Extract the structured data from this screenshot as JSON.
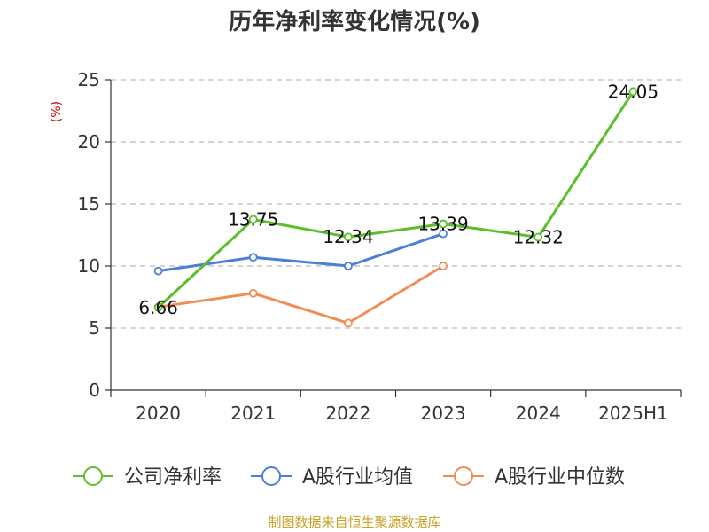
{
  "colors": {
    "company": "#5cbf2a",
    "industry_avg": "#4a7fd6",
    "industry_median": "#f28c55",
    "grid": "#bbbbbb",
    "axis": "#333333",
    "unit_label": "#cc0000",
    "source": "#c9a227"
  },
  "chart_data": {
    "type": "line",
    "title": "历年净利率变化情况(%)",
    "ylabel": "(%)",
    "xlabel": "",
    "categories": [
      "2020",
      "2021",
      "2022",
      "2023",
      "2024",
      "2025H1"
    ],
    "ylim": [
      0,
      25
    ],
    "yticks": [
      "0",
      "5",
      "10",
      "15",
      "20",
      "25"
    ],
    "grid": true,
    "legend_position": "bottom",
    "series": [
      {
        "name": "公司净利率",
        "color": "#5cbf2a",
        "values": [
          6.66,
          13.75,
          12.34,
          13.39,
          12.32,
          24.05
        ],
        "labels": [
          "6.66",
          "13.75",
          "12.34",
          "13.39",
          "12.32",
          "24.05"
        ]
      },
      {
        "name": "A股行业均值",
        "color": "#4a7fd6",
        "values": [
          9.6,
          10.7,
          10.0,
          12.6,
          null,
          null
        ]
      },
      {
        "name": "A股行业中位数",
        "color": "#f28c55",
        "values": [
          6.7,
          7.8,
          5.4,
          10.0,
          null,
          null
        ]
      }
    ]
  },
  "footer": {
    "source": "制图数据来自恒生聚源数据库"
  }
}
